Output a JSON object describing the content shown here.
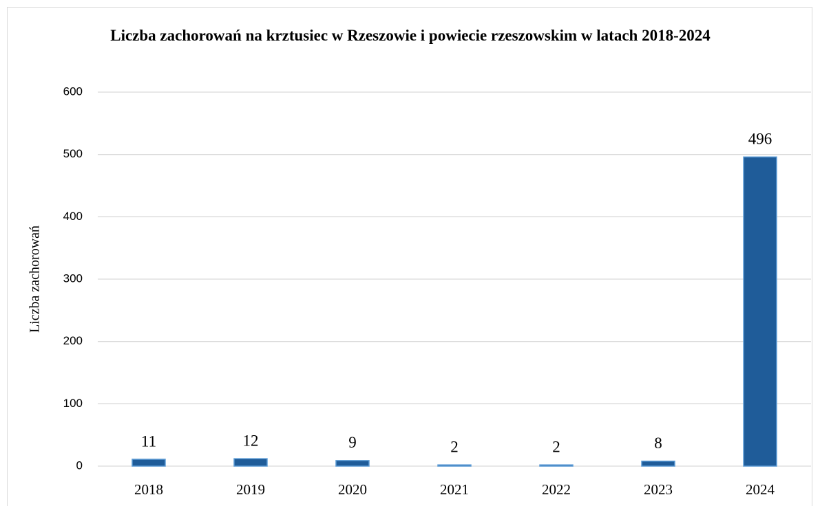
{
  "chart_data": {
    "type": "bar",
    "title": "Liczba zachorowań na krztusiec w Rzeszowie i powiecie rzeszowskim w latach 2018-2024",
    "y_label": "Liczba zachorowań",
    "categories": [
      "2018",
      "2019",
      "2020",
      "2021",
      "2022",
      "2023",
      "2024"
    ],
    "values": [
      11,
      12,
      9,
      2,
      2,
      8,
      496
    ],
    "color": "#1f5c99",
    "ylim": [
      0,
      600
    ],
    "yticks": [
      0,
      100,
      200,
      300,
      400,
      500,
      600
    ],
    "grid": true
  }
}
